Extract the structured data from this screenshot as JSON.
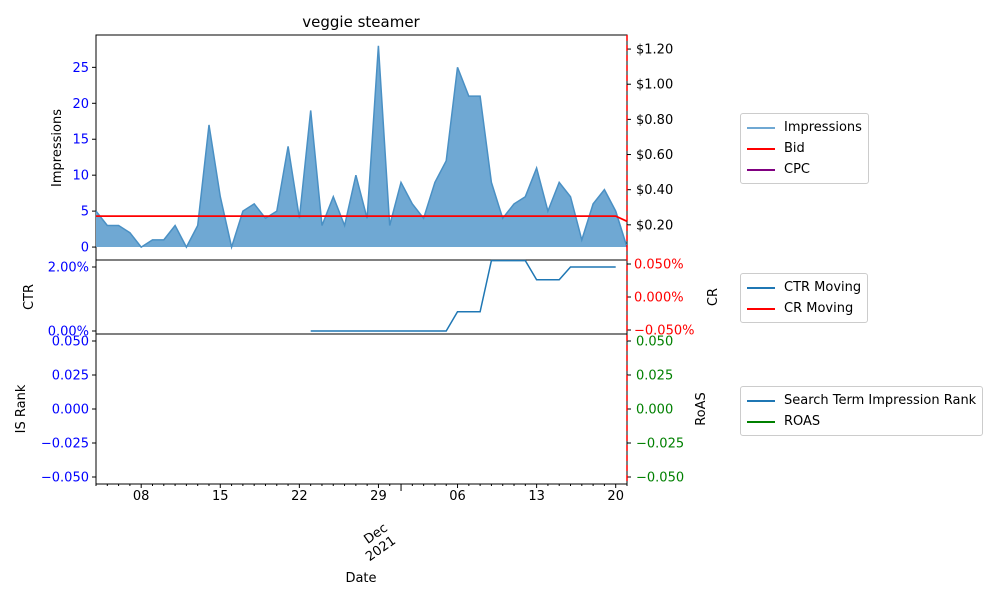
{
  "chart_data": [
    {
      "type": "area",
      "title": "veggie steamer",
      "ylabel": "Impressions",
      "y2label": "",
      "ylim": [
        -1.8,
        29.5
      ],
      "yticks": [
        0,
        5,
        10,
        15,
        20,
        25
      ],
      "y2lim": [
        0,
        1.28
      ],
      "y2ticks": [
        "$0.20",
        "$0.40",
        "$0.60",
        "$0.80",
        "$1.00",
        "$1.20"
      ],
      "y2tick_values": [
        0.2,
        0.4,
        0.6,
        0.8,
        1.0,
        1.2
      ],
      "x_start": "2021-11-04",
      "x_end": "2021-12-21",
      "series": [
        {
          "name": "Impressions",
          "color": "#1f77b4",
          "start_date": "2021-11-04",
          "values": [
            5,
            3,
            3,
            2,
            0,
            1,
            1,
            3,
            0,
            3,
            17,
            7,
            0,
            5,
            6,
            4,
            5,
            14,
            4,
            19,
            3,
            7,
            3,
            10,
            4,
            28,
            3,
            9,
            6,
            4,
            9,
            12,
            25,
            21,
            21,
            9,
            4,
            6,
            7,
            11,
            5,
            9,
            7,
            1,
            6,
            8,
            5,
            0
          ]
        },
        {
          "name": "Bid",
          "color": "#ff0000",
          "axis": "right",
          "points": [
            [
              "2021-11-04",
              0.25
            ],
            [
              "2021-12-20",
              0.25
            ],
            [
              "2021-12-21",
              0.22
            ]
          ]
        },
        {
          "name": "CPC",
          "color": "#800080",
          "axis": "right",
          "points": []
        }
      ],
      "legend": [
        "Impressions",
        "Bid",
        "CPC"
      ]
    },
    {
      "type": "line",
      "ylabel": "CTR",
      "y2label": "CR",
      "yticks": [
        "0.00%",
        "2.00%"
      ],
      "y2ticks": [
        "−0.050%",
        "0.000%",
        "0.050%"
      ],
      "series": [
        {
          "name": "CTR Moving",
          "color": "#1f77b4",
          "points": [
            [
              "2021-11-23",
              0.0
            ],
            [
              "2021-12-05",
              0.0
            ],
            [
              "2021-12-06",
              0.6
            ],
            [
              "2021-12-08",
              0.6
            ],
            [
              "2021-12-09",
              2.2
            ],
            [
              "2021-12-12",
              2.2
            ],
            [
              "2021-12-13",
              1.6
            ],
            [
              "2021-12-15",
              1.6
            ],
            [
              "2021-12-16",
              2.0
            ],
            [
              "2021-12-20",
              2.0
            ]
          ]
        },
        {
          "name": "CR Moving",
          "color": "#ff0000",
          "points": []
        }
      ],
      "legend": [
        "CTR Moving",
        "CR Moving"
      ]
    },
    {
      "type": "line",
      "ylabel": "IS Rank",
      "y2label": "RoAS",
      "yticks": [
        "−0.050",
        "−0.025",
        "0.000",
        "0.025",
        "0.050"
      ],
      "y2ticks": [
        "−0.050",
        "−0.025",
        "0.000",
        "0.025",
        "0.050"
      ],
      "series": [
        {
          "name": "Search Term Impression Rank",
          "color": "#1f77b4",
          "points": []
        },
        {
          "name": "ROAS",
          "color": "#008000",
          "points": []
        }
      ],
      "legend": [
        "Search Term Impression Rank",
        "ROAS"
      ]
    }
  ],
  "x_axis": {
    "xlabel": "Date",
    "tick_labels": [
      "08",
      "15",
      "22",
      "29",
      "06",
      "13",
      "20"
    ],
    "tick_dates": [
      "2021-11-08",
      "2021-11-15",
      "2021-11-22",
      "2021-11-29",
      "2021-12-06",
      "2021-12-13",
      "2021-12-20"
    ],
    "month_label": "Dec",
    "year_label": "2021"
  },
  "colors": {
    "left_tick": "#0000ff",
    "right_tick_top": "#000000",
    "right_tick_mid": "#ff0000",
    "right_tick_bottom": "#008000",
    "area_fill": "#6fa8d3",
    "area_line": "#4a90c4",
    "dashed_line": "#ff0000"
  }
}
